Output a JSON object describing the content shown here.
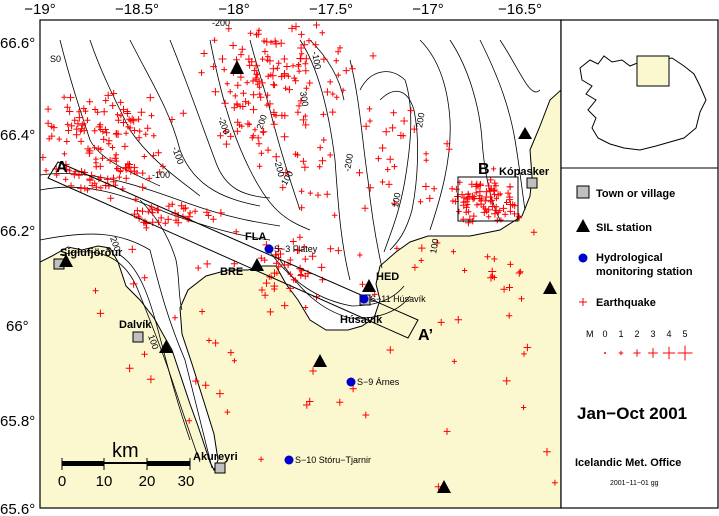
{
  "map": {
    "lon_ticks": [
      "−19°",
      "−18.5°",
      "−18°",
      "−17.5°",
      "−17°",
      "−16.5°"
    ],
    "lat_ticks": [
      "66.6°",
      "66.4°",
      "66.2°",
      "66°",
      "65.8°",
      "65.6°"
    ],
    "profile": {
      "start": "A",
      "end": "A’"
    },
    "box_label": "B",
    "contours": [
      "S0",
      "-100",
      "200",
      "-200",
      "-100",
      "100",
      "-200",
      "200",
      "300",
      "-200",
      "-100",
      "100",
      "200",
      "100",
      "100",
      "-200"
    ],
    "towns": [
      "Siglufjörður",
      "Dalvík",
      "Akureyri",
      "Húsavík",
      "Kópasker"
    ],
    "sil_stations": [
      "FLA",
      "BRE",
      "HED"
    ],
    "hydro_stations": [
      "S−3 Flatey",
      "S−11 Húsavík",
      "S−9 Árnes",
      "S−10 Stóru−Tjarnir"
    ],
    "scale": {
      "unit": "km",
      "ticks": [
        "0",
        "10",
        "20",
        "30"
      ]
    }
  },
  "legend": {
    "items": [
      {
        "label": "Town or village",
        "symbol": "grey-square"
      },
      {
        "label": "SIL station",
        "symbol": "black-triangle"
      },
      {
        "label": "Hydrological",
        "label2": "monitoring station",
        "symbol": "blue-circle"
      },
      {
        "label": "Earthquake",
        "symbol": "red-cross"
      }
    ],
    "magnitude": {
      "prefix": "M",
      "values": [
        "0",
        "1",
        "2",
        "3",
        "4",
        "5"
      ]
    },
    "period": "Jan−Oct 2001",
    "office": "Icelandic Met. Office",
    "stamp": "2001−11−01 gg"
  },
  "colors": {
    "land": "#fbf7cf",
    "sea": "#ffffff",
    "quake": "#ff0000",
    "hydro": "#0000cc",
    "town": "#c0c0c0"
  }
}
